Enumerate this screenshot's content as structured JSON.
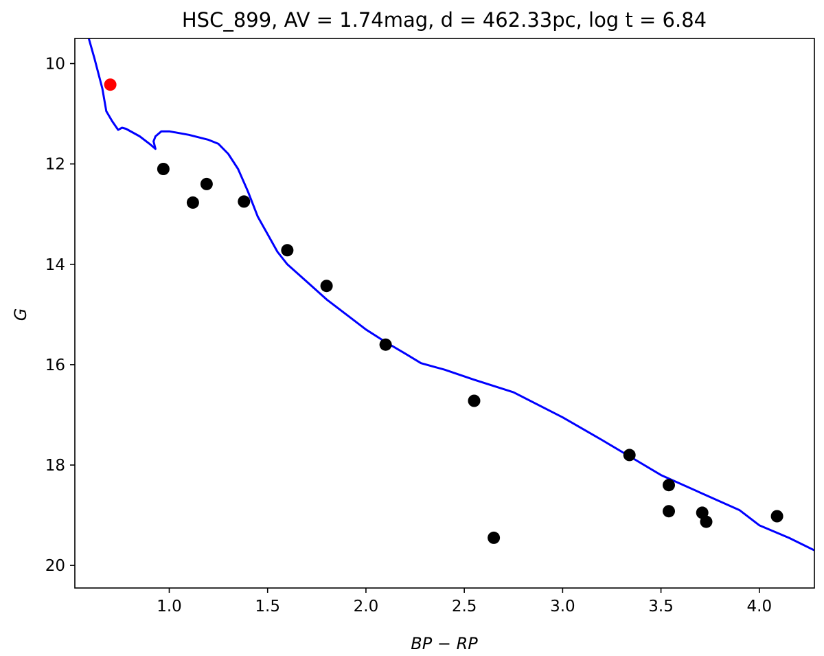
{
  "chart_data": {
    "type": "scatter",
    "title": "HSC_899, AV = 1.74mag, d = 462.33pc, log t = 6.84",
    "xlabel": "BP − RP",
    "ylabel": "G",
    "xlim": [
      0.52,
      4.28
    ],
    "ylim": [
      20.45,
      9.5
    ],
    "y_inverted": true,
    "grid": false,
    "x_ticks": [
      {
        "value": 1.0,
        "label": "1.0"
      },
      {
        "value": 1.5,
        "label": "1.5"
      },
      {
        "value": 2.0,
        "label": "2.0"
      },
      {
        "value": 2.5,
        "label": "2.5"
      },
      {
        "value": 3.0,
        "label": "3.0"
      },
      {
        "value": 3.5,
        "label": "3.5"
      },
      {
        "value": 4.0,
        "label": "4.0"
      }
    ],
    "y_ticks": [
      {
        "value": 10,
        "label": "10"
      },
      {
        "value": 12,
        "label": "12"
      },
      {
        "value": 14,
        "label": "14"
      },
      {
        "value": 16,
        "label": "16"
      },
      {
        "value": 18,
        "label": "18"
      },
      {
        "value": 20,
        "label": "20"
      }
    ],
    "isochrone": {
      "color": "#0000ff",
      "points": [
        [
          0.58,
          9.35
        ],
        [
          0.62,
          9.9
        ],
        [
          0.66,
          10.5
        ],
        [
          0.68,
          10.95
        ],
        [
          0.71,
          11.15
        ],
        [
          0.74,
          11.32
        ],
        [
          0.76,
          11.28
        ],
        [
          0.78,
          11.3
        ],
        [
          0.85,
          11.45
        ],
        [
          0.9,
          11.6
        ],
        [
          0.93,
          11.7
        ],
        [
          0.92,
          11.55
        ],
        [
          0.93,
          11.45
        ],
        [
          0.96,
          11.35
        ],
        [
          1.0,
          11.35
        ],
        [
          1.1,
          11.42
        ],
        [
          1.2,
          11.52
        ],
        [
          1.25,
          11.6
        ],
        [
          1.3,
          11.8
        ],
        [
          1.35,
          12.1
        ],
        [
          1.4,
          12.55
        ],
        [
          1.45,
          13.05
        ],
        [
          1.5,
          13.4
        ],
        [
          1.55,
          13.75
        ],
        [
          1.6,
          14.0
        ],
        [
          1.7,
          14.35
        ],
        [
          1.8,
          14.7
        ],
        [
          1.9,
          15.0
        ],
        [
          2.0,
          15.3
        ],
        [
          2.1,
          15.55
        ],
        [
          2.2,
          15.78
        ],
        [
          2.28,
          15.97
        ],
        [
          2.4,
          16.1
        ],
        [
          2.55,
          16.3
        ],
        [
          2.75,
          16.55
        ],
        [
          3.0,
          17.05
        ],
        [
          3.2,
          17.5
        ],
        [
          3.35,
          17.85
        ],
        [
          3.5,
          18.2
        ],
        [
          3.7,
          18.55
        ],
        [
          3.9,
          18.9
        ],
        [
          4.0,
          19.2
        ],
        [
          4.15,
          19.45
        ],
        [
          4.28,
          19.7
        ]
      ]
    },
    "series": [
      {
        "color": "#000000",
        "points": [
          [
            0.97,
            12.1
          ],
          [
            1.12,
            12.77
          ],
          [
            1.19,
            12.4
          ],
          [
            1.38,
            12.75
          ],
          [
            1.6,
            13.72
          ],
          [
            1.8,
            14.43
          ],
          [
            2.1,
            15.6
          ],
          [
            2.55,
            16.72
          ],
          [
            2.65,
            19.45
          ],
          [
            3.34,
            17.8
          ],
          [
            3.54,
            18.4
          ],
          [
            3.54,
            18.92
          ],
          [
            3.71,
            18.95
          ],
          [
            3.73,
            19.13
          ],
          [
            4.09,
            19.02
          ]
        ]
      },
      {
        "color": "#ff0000",
        "points": [
          [
            0.7,
            10.42
          ]
        ]
      }
    ]
  }
}
